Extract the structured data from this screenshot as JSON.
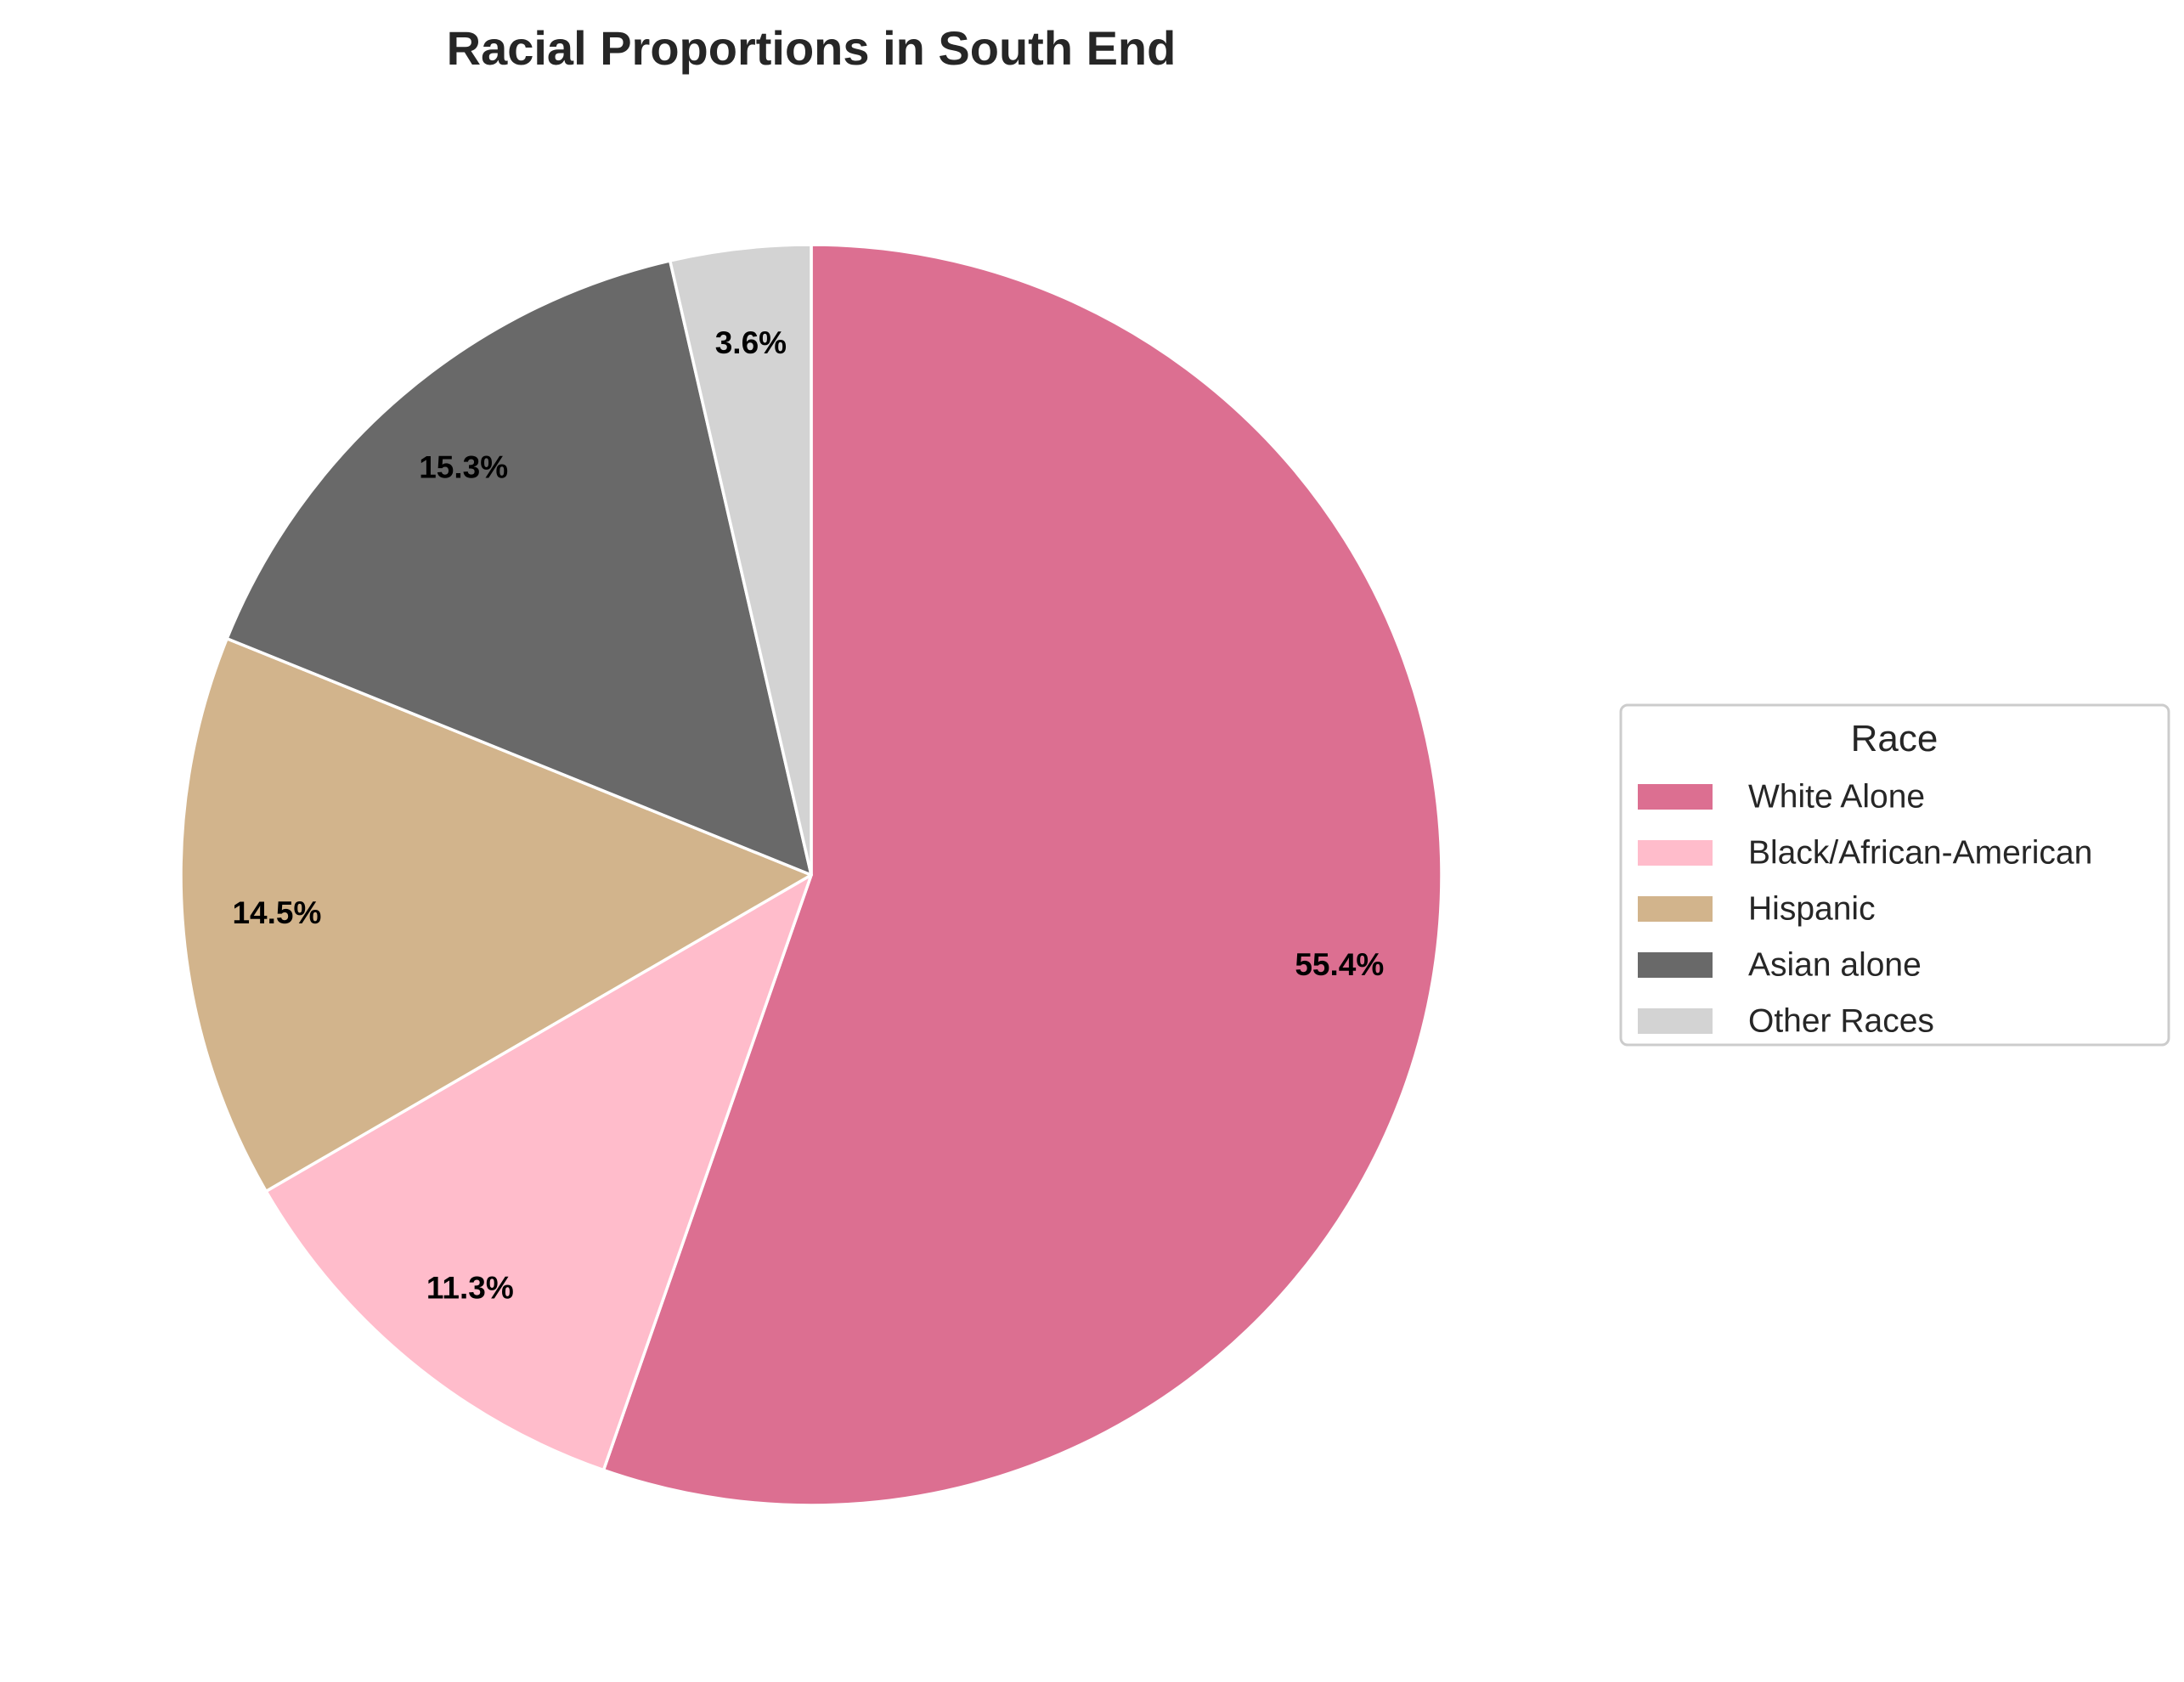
{
  "chart_data": {
    "type": "pie",
    "title": "Racial Proportions in South End",
    "start_angle_deg": 90,
    "direction": "clockwise",
    "slice_edge_color": "#ffffff",
    "slices": [
      {
        "label": "White Alone",
        "value": 55.4,
        "pct_label": "55.4%",
        "color": "#dc6f91"
      },
      {
        "label": "Black/African-American",
        "value": 11.3,
        "pct_label": "11.3%",
        "color": "#ffbccb"
      },
      {
        "label": "Hispanic",
        "value": 14.5,
        "pct_label": "14.5%",
        "color": "#d2b48c"
      },
      {
        "label": "Asian alone",
        "value": 15.3,
        "pct_label": "15.3%",
        "color": "#696969"
      },
      {
        "label": "Other Races",
        "value": 3.6,
        "pct_label": "3.6%",
        "color": "#d3d3d3"
      }
    ],
    "legend": {
      "title": "Race",
      "placement": "center-right"
    }
  }
}
